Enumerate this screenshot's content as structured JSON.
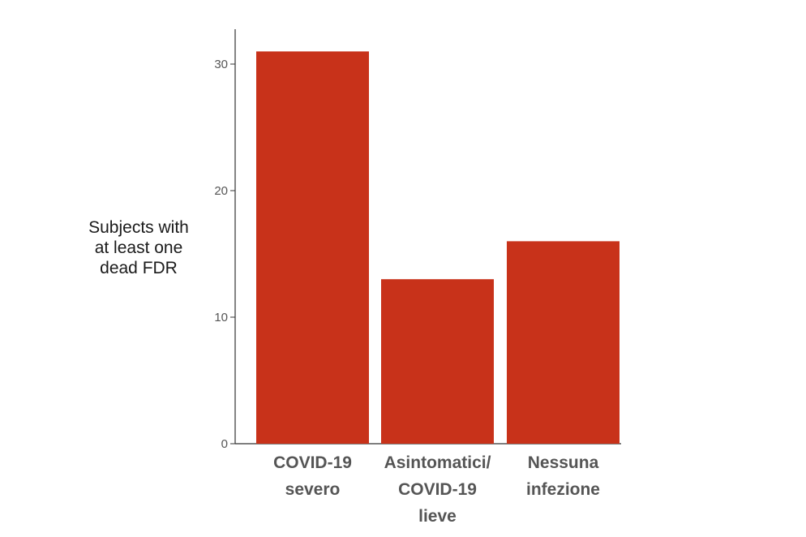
{
  "chart_data": {
    "type": "bar",
    "categories": [
      [
        "COVID-19",
        "severo"
      ],
      [
        "Asintomatici/",
        "COVID-19",
        "lieve"
      ],
      [
        "Nessuna",
        "infezione"
      ]
    ],
    "values": [
      31,
      13,
      16
    ],
    "ylabel": [
      "Subjects with",
      "at least one",
      "dead FDR"
    ],
    "xlabel": "",
    "title": "",
    "ylim": [
      0,
      32
    ],
    "yticks": [
      0,
      10,
      20,
      30
    ],
    "bar_color": "#c8321a",
    "grid": false,
    "legend": "none"
  }
}
